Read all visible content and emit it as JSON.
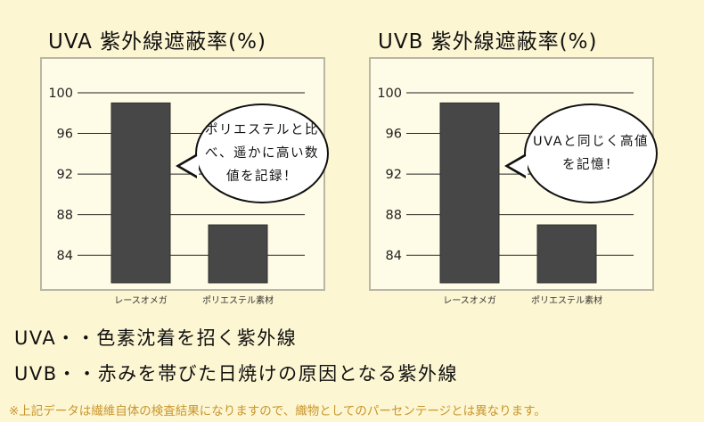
{
  "chart_data": [
    {
      "type": "bar",
      "title": "UVA  紫外線遮蔽率(%)",
      "categories": [
        "レースオメガ",
        "ポリエステル素材"
      ],
      "values": [
        99,
        87
      ],
      "ylim": [
        82,
        100
      ],
      "yticks": [
        84,
        88,
        92,
        96,
        100
      ],
      "grid": true,
      "bar_color": "#474747",
      "callout": "ポリエステルと比べ、遥かに高い数値を記録！"
    },
    {
      "type": "bar",
      "title": "UVB  紫外線遮蔽率(%)",
      "categories": [
        "レースオメガ",
        "ポリエステル素材"
      ],
      "values": [
        99,
        87
      ],
      "ylim": [
        82,
        100
      ],
      "yticks": [
        84,
        88,
        92,
        96,
        100
      ],
      "grid": true,
      "bar_color": "#474747",
      "callout": "UVAと同じく高値を記憶！"
    }
  ],
  "descriptions": {
    "uva": "UVA・・色素沈着を招く紫外線",
    "uvb": "UVB・・赤みを帯びた日焼けの原因となる紫外線"
  },
  "footnote": "※上記データは繊維自体の検査結果になりますので、織物としてのパーセンテージとは異なります。",
  "colors": {
    "background": "#fdf6d2",
    "panel": "#fefbe6",
    "bar": "#474747",
    "footnote": "#c9962d"
  }
}
